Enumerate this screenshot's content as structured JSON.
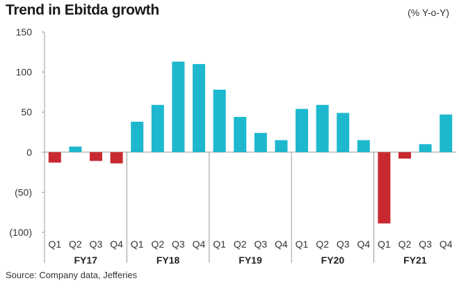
{
  "header": {
    "title": "Trend in Ebitda growth",
    "unit": "(% Y-o-Y)"
  },
  "footer": {
    "source": "Source: Company data, Jefferies"
  },
  "colors": {
    "positive": "#1DB8CE",
    "negative": "#C92A32",
    "axis": "#999999",
    "grid": "#cccccc"
  },
  "chart_data": {
    "type": "bar",
    "title": "Trend in Ebitda growth",
    "ylabel": "(% Y-o-Y)",
    "ylim": [
      -100,
      150
    ],
    "yticks": [
      150,
      100,
      50,
      0,
      -50,
      -100
    ],
    "ytick_labels": [
      "150",
      "100",
      "50",
      "0",
      "(50)",
      "(100)"
    ],
    "grid": false,
    "groups": [
      {
        "name": "FY17",
        "categories": [
          "Q1",
          "Q2",
          "Q3",
          "Q4"
        ],
        "values": [
          -13,
          7,
          -11,
          -14
        ]
      },
      {
        "name": "FY18",
        "categories": [
          "Q1",
          "Q2",
          "Q3",
          "Q4"
        ],
        "values": [
          38,
          59,
          113,
          110
        ]
      },
      {
        "name": "FY19",
        "categories": [
          "Q1",
          "Q2",
          "Q3",
          "Q4"
        ],
        "values": [
          78,
          44,
          24,
          15
        ]
      },
      {
        "name": "FY20",
        "categories": [
          "Q1",
          "Q2",
          "Q3",
          "Q4"
        ],
        "values": [
          54,
          59,
          49,
          15
        ]
      },
      {
        "name": "FY21",
        "categories": [
          "Q1",
          "Q2",
          "Q3",
          "Q4"
        ],
        "values": [
          -89,
          -8,
          10,
          47
        ]
      }
    ]
  }
}
